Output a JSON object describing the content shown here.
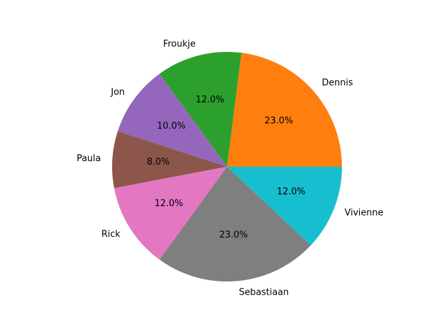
{
  "chart_data": {
    "type": "pie",
    "categories": [
      "Dennis",
      "Froukje",
      "Jon",
      "Paula",
      "Rick",
      "Sebastiaan",
      "Vivienne"
    ],
    "values": [
      23.0,
      12.0,
      10.0,
      8.0,
      12.0,
      23.0,
      12.0
    ],
    "percent_labels": [
      "23.0%",
      "12.0%",
      "10.0%",
      "8.0%",
      "12.0%",
      "23.0%",
      "12.0%"
    ],
    "colors": [
      "#ff7f0e",
      "#2ca02c",
      "#9467bd",
      "#8c564b",
      "#e377c2",
      "#7f7f7f",
      "#17becf"
    ],
    "start_angle_deg": 0,
    "direction": "counterclockwise",
    "title": "",
    "legend": "none"
  }
}
